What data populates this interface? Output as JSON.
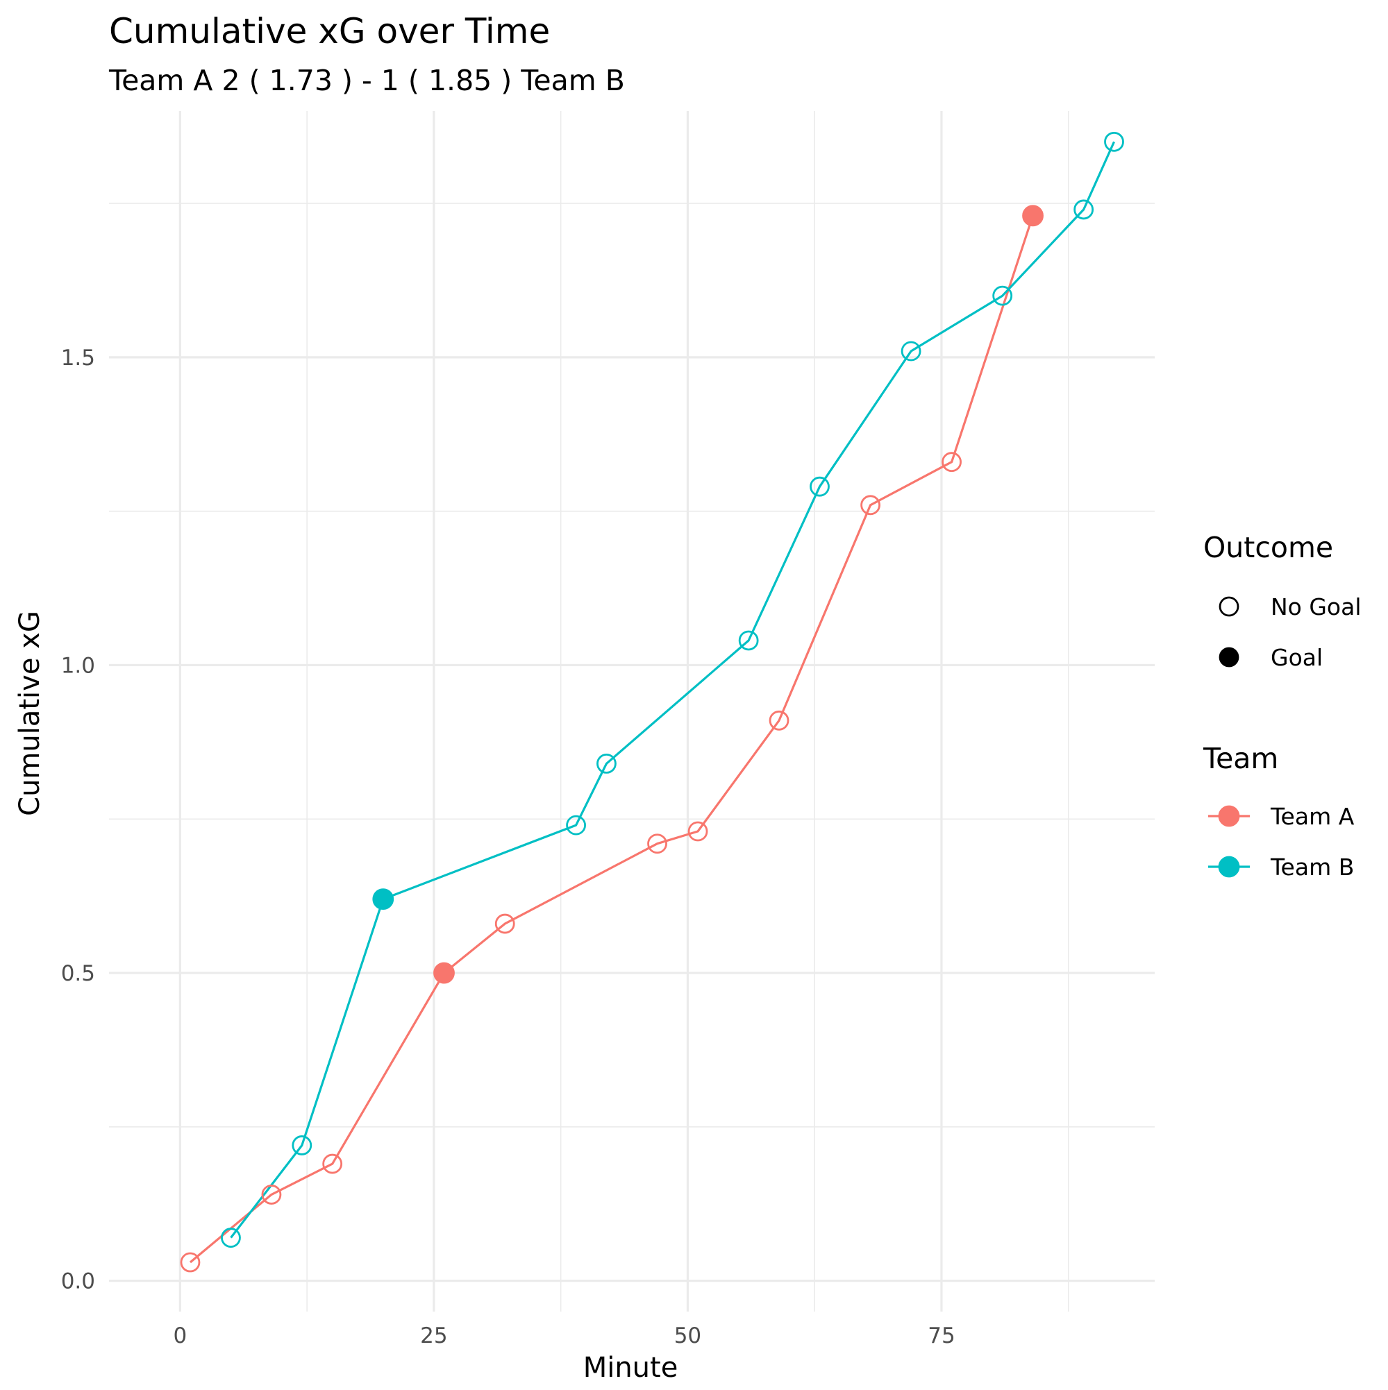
{
  "chart_data": {
    "type": "line",
    "title": "Cumulative xG over Time",
    "subtitle": "Team A 2 ( 1.73 ) - 1 ( 1.85 ) Team B",
    "xlabel": "Minute",
    "ylabel": "Cumulative xG",
    "xlim": [
      -7,
      96
    ],
    "ylim": [
      -0.05,
      1.9
    ],
    "x_ticks": [
      0,
      25,
      50,
      75
    ],
    "x_tick_labels": [
      "0",
      "25",
      "50",
      "75"
    ],
    "y_ticks": [
      0,
      0.5,
      1,
      1.5
    ],
    "y_tick_labels": [
      "0.0",
      "0.5",
      "1.0",
      "1.5"
    ],
    "grid": true,
    "legend_position": "right",
    "legends": [
      {
        "title": "Outcome",
        "items": [
          {
            "label": "No Goal",
            "marker": "open-circle"
          },
          {
            "label": "Goal",
            "marker": "filled-circle"
          }
        ]
      },
      {
        "title": "Team",
        "items": [
          {
            "label": "Team A",
            "color": "#F8766D"
          },
          {
            "label": "Team B",
            "color": "#00BFC4"
          }
        ]
      }
    ],
    "series": [
      {
        "name": "Team A",
        "color": "#F8766D",
        "points": [
          {
            "x": 1,
            "y": 0.03,
            "outcome": "No Goal"
          },
          {
            "x": 9,
            "y": 0.14,
            "outcome": "No Goal"
          },
          {
            "x": 15,
            "y": 0.19,
            "outcome": "No Goal"
          },
          {
            "x": 26,
            "y": 0.5,
            "outcome": "Goal"
          },
          {
            "x": 32,
            "y": 0.58,
            "outcome": "No Goal"
          },
          {
            "x": 47,
            "y": 0.71,
            "outcome": "No Goal"
          },
          {
            "x": 51,
            "y": 0.73,
            "outcome": "No Goal"
          },
          {
            "x": 59,
            "y": 0.91,
            "outcome": "No Goal"
          },
          {
            "x": 68,
            "y": 1.26,
            "outcome": "No Goal"
          },
          {
            "x": 76,
            "y": 1.33,
            "outcome": "No Goal"
          },
          {
            "x": 84,
            "y": 1.73,
            "outcome": "Goal"
          }
        ]
      },
      {
        "name": "Team B",
        "color": "#00BFC4",
        "points": [
          {
            "x": 5,
            "y": 0.07,
            "outcome": "No Goal"
          },
          {
            "x": 12,
            "y": 0.22,
            "outcome": "No Goal"
          },
          {
            "x": 20,
            "y": 0.62,
            "outcome": "Goal"
          },
          {
            "x": 39,
            "y": 0.74,
            "outcome": "No Goal"
          },
          {
            "x": 42,
            "y": 0.84,
            "outcome": "No Goal"
          },
          {
            "x": 56,
            "y": 1.04,
            "outcome": "No Goal"
          },
          {
            "x": 63,
            "y": 1.29,
            "outcome": "No Goal"
          },
          {
            "x": 72,
            "y": 1.51,
            "outcome": "No Goal"
          },
          {
            "x": 81,
            "y": 1.6,
            "outcome": "No Goal"
          },
          {
            "x": 89,
            "y": 1.74,
            "outcome": "No Goal"
          },
          {
            "x": 92,
            "y": 1.85,
            "outcome": "No Goal"
          }
        ]
      }
    ]
  }
}
